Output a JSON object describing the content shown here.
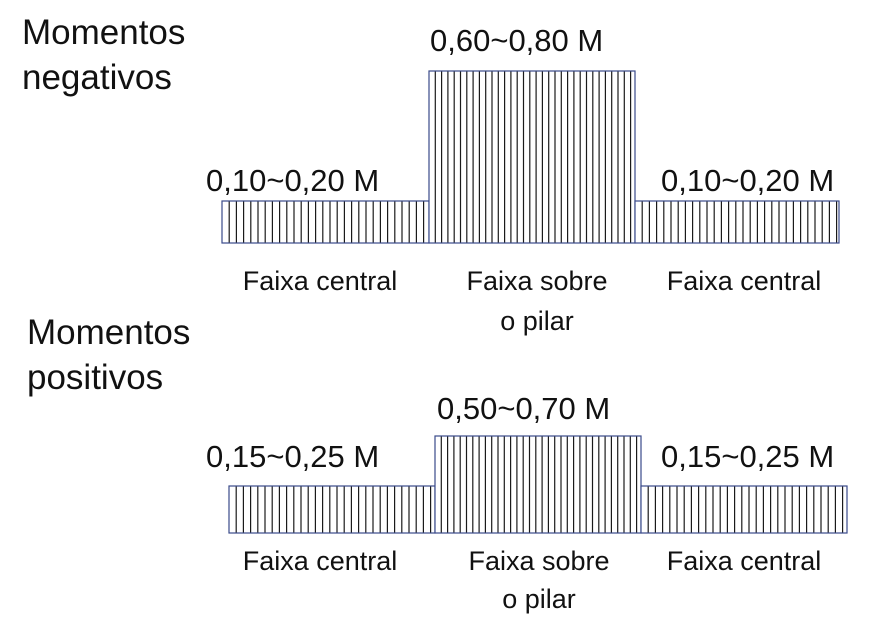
{
  "colors": {
    "background": "#ffffff",
    "hatch": "#1a1a1a",
    "block_outline": "#3a4a8a",
    "text": "#111111"
  },
  "diagrams": [
    {
      "heading_line1": "Momentos",
      "heading_line2": "negativos",
      "value_labels": [
        "0,10~0,20 M",
        "0,60~0,80 M",
        "0,10~0,20 M"
      ],
      "strip_labels": [
        {
          "line1": "Faixa central",
          "line2": ""
        },
        {
          "line1": "Faixa sobre",
          "line2": "o pilar"
        },
        {
          "line1": "Faixa central",
          "line2": ""
        }
      ]
    },
    {
      "heading_line1": "Momentos",
      "heading_line2": "positivos",
      "value_labels": [
        "0,15~0,25 M",
        "0,50~0,70 M",
        "0,15~0,25 M"
      ],
      "strip_labels": [
        {
          "line1": "Faixa central",
          "line2": ""
        },
        {
          "line1": "Faixa sobre",
          "line2": "o pilar"
        },
        {
          "line1": "Faixa central",
          "line2": ""
        }
      ]
    }
  ]
}
